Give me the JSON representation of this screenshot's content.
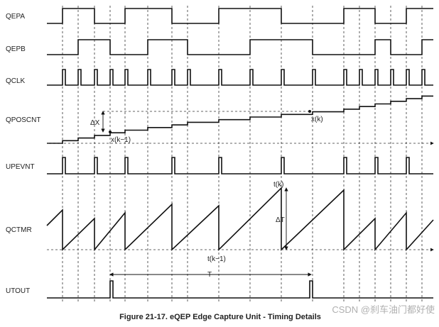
{
  "signals": [
    "QEPA",
    "QEPB",
    "QCLK",
    "QPOSCNT",
    "UPEVNT",
    "QCTMR",
    "UTOUT"
  ],
  "annotations": {
    "delta_x": "ΔX",
    "x_k": "x(k)",
    "x_k1": "x(k−1)",
    "t_k": "t(k)",
    "delta_t": "ΔT",
    "t_k1": "t(k−1)",
    "period": "T"
  },
  "caption": "Figure 21-17. eQEP Edge Capture Unit - Timing Details",
  "watermark": "CSDN @刹车油门都好使"
}
